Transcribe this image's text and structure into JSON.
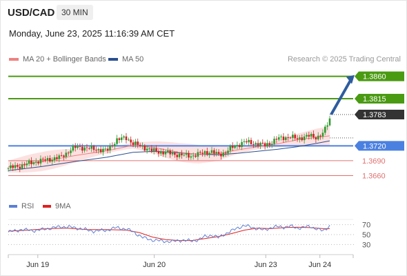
{
  "header": {
    "symbol": "USD/CAD",
    "timeframe": "30 MIN"
  },
  "date_line": "Monday, June 23, 2025 11:16:39 AM CET",
  "legend": {
    "ma20": {
      "label": "MA 20 + Bollinger Bands",
      "color": "#f08080"
    },
    "ma50": {
      "label": "MA 50",
      "color": "#2a4f8f"
    }
  },
  "copyright": "Research © 2025 Trading Central",
  "rsi_legend": {
    "rsi": {
      "label": "RSI",
      "color": "#5b7fd6"
    },
    "ma9": {
      "label": "9MA",
      "color": "#e02020"
    }
  },
  "colors": {
    "resistance": "#4a9a12",
    "pivot": "#4a80e0",
    "support": "#e07070",
    "current": "#333333",
    "candle_up": "#2d9a2d",
    "candle_down": "#cc2222",
    "arrow": "#2e5c9e",
    "band_fill": "#fbdcdc"
  },
  "chart_data": [
    {
      "type": "candlestick",
      "instrument": "USD/CAD",
      "timeframe": "30 MIN",
      "ylim": [
        1.3644,
        1.3872
      ],
      "x_tick_labels": [
        "Jun 19",
        "Jun 20",
        "Jun 23",
        "Jun 24"
      ],
      "levels": [
        {
          "value": 1.386,
          "label": "1.3860",
          "kind": "resistance"
        },
        {
          "value": 1.3815,
          "label": "1.3815",
          "kind": "resistance"
        },
        {
          "value": 1.3783,
          "label": "1.3783",
          "kind": "current"
        },
        {
          "value": 1.372,
          "label": "1.3720",
          "kind": "pivot"
        },
        {
          "value": 1.369,
          "label": "1.3690",
          "kind": "support"
        },
        {
          "value": 1.366,
          "label": "1.3660",
          "kind": "support"
        }
      ],
      "close_path": [
        [
          0,
          1.3675
        ],
        [
          4,
          1.368
        ],
        [
          8,
          1.3688
        ],
        [
          12,
          1.3692
        ],
        [
          16,
          1.3697
        ],
        [
          19,
          1.3712
        ],
        [
          21,
          1.3718
        ],
        [
          24,
          1.3715
        ],
        [
          27,
          1.3713
        ],
        [
          30,
          1.371
        ],
        [
          33,
          1.3732
        ],
        [
          36,
          1.3736
        ],
        [
          38,
          1.3725
        ],
        [
          41,
          1.3718
        ],
        [
          44,
          1.371
        ],
        [
          47,
          1.3707
        ],
        [
          50,
          1.3704
        ],
        [
          53,
          1.3701
        ],
        [
          56,
          1.37
        ],
        [
          58,
          1.3703
        ],
        [
          60,
          1.3707
        ],
        [
          62,
          1.3708
        ],
        [
          64,
          1.3702
        ],
        [
          66,
          1.3706
        ],
        [
          68,
          1.3716
        ],
        [
          70,
          1.3722
        ],
        [
          72,
          1.3728
        ],
        [
          74,
          1.3726
        ],
        [
          76,
          1.3724
        ],
        [
          78,
          1.3721
        ],
        [
          80,
          1.3726
        ],
        [
          82,
          1.3734
        ],
        [
          84,
          1.3737
        ],
        [
          86,
          1.3738
        ],
        [
          88,
          1.3734
        ],
        [
          90,
          1.3738
        ],
        [
          92,
          1.374
        ],
        [
          94,
          1.3737
        ],
        [
          96,
          1.3745
        ],
        [
          98,
          1.3774
        ]
      ],
      "ma20": [
        [
          0,
          1.3678
        ],
        [
          10,
          1.3688
        ],
        [
          20,
          1.37
        ],
        [
          30,
          1.371
        ],
        [
          38,
          1.3721
        ],
        [
          45,
          1.3716
        ],
        [
          52,
          1.3707
        ],
        [
          58,
          1.3703
        ],
        [
          64,
          1.3704
        ],
        [
          70,
          1.3712
        ],
        [
          76,
          1.3718
        ],
        [
          82,
          1.3724
        ],
        [
          88,
          1.3732
        ],
        [
          94,
          1.3737
        ],
        [
          98,
          1.374
        ]
      ],
      "ma50": [
        [
          0,
          1.367
        ],
        [
          10,
          1.3678
        ],
        [
          20,
          1.3688
        ],
        [
          30,
          1.3697
        ],
        [
          38,
          1.3707
        ],
        [
          45,
          1.3709
        ],
        [
          52,
          1.3706
        ],
        [
          58,
          1.3703
        ],
        [
          64,
          1.3702
        ],
        [
          70,
          1.3705
        ],
        [
          76,
          1.3709
        ],
        [
          82,
          1.3713
        ],
        [
          88,
          1.3718
        ],
        [
          94,
          1.3725
        ],
        [
          98,
          1.373
        ]
      ],
      "bollinger_band_width": 0.0012,
      "forecast_arrow": {
        "from": 1.3783,
        "to": 1.386
      }
    },
    {
      "type": "line",
      "title": "RSI",
      "y_ticks": [
        70,
        50,
        30
      ],
      "ylim": [
        25,
        75
      ],
      "series": [
        {
          "name": "RSI",
          "values": [
            [
              0,
              55
            ],
            [
              4,
              60
            ],
            [
              8,
              58
            ],
            [
              12,
              62
            ],
            [
              16,
              66
            ],
            [
              19,
              65
            ],
            [
              22,
              62
            ],
            [
              26,
              57
            ],
            [
              30,
              59
            ],
            [
              33,
              64
            ],
            [
              36,
              61
            ],
            [
              38,
              56
            ],
            [
              41,
              44
            ],
            [
              44,
              39
            ],
            [
              47,
              37
            ],
            [
              50,
              36
            ],
            [
              53,
              39
            ],
            [
              56,
              37
            ],
            [
              58,
              40
            ],
            [
              60,
              46
            ],
            [
              62,
              49
            ],
            [
              64,
              44
            ],
            [
              66,
              51
            ],
            [
              68,
              57
            ],
            [
              70,
              64
            ],
            [
              72,
              68
            ],
            [
              74,
              65
            ],
            [
              76,
              62
            ],
            [
              78,
              59
            ],
            [
              80,
              64
            ],
            [
              82,
              66
            ],
            [
              84,
              65
            ],
            [
              86,
              67
            ],
            [
              88,
              63
            ],
            [
              90,
              65
            ],
            [
              92,
              66
            ],
            [
              94,
              62
            ],
            [
              96,
              57
            ],
            [
              98,
              68
            ]
          ]
        },
        {
          "name": "9MA",
          "values": [
            [
              0,
              57
            ],
            [
              6,
              59
            ],
            [
              12,
              62
            ],
            [
              18,
              63
            ],
            [
              24,
              60
            ],
            [
              30,
              60
            ],
            [
              36,
              59
            ],
            [
              40,
              54
            ],
            [
              44,
              45
            ],
            [
              48,
              40
            ],
            [
              52,
              38
            ],
            [
              56,
              38
            ],
            [
              60,
              42
            ],
            [
              64,
              46
            ],
            [
              68,
              52
            ],
            [
              72,
              59
            ],
            [
              76,
              63
            ],
            [
              80,
              62
            ],
            [
              84,
              64
            ],
            [
              88,
              65
            ],
            [
              92,
              64
            ],
            [
              96,
              62
            ],
            [
              98,
              62
            ]
          ]
        }
      ]
    }
  ]
}
